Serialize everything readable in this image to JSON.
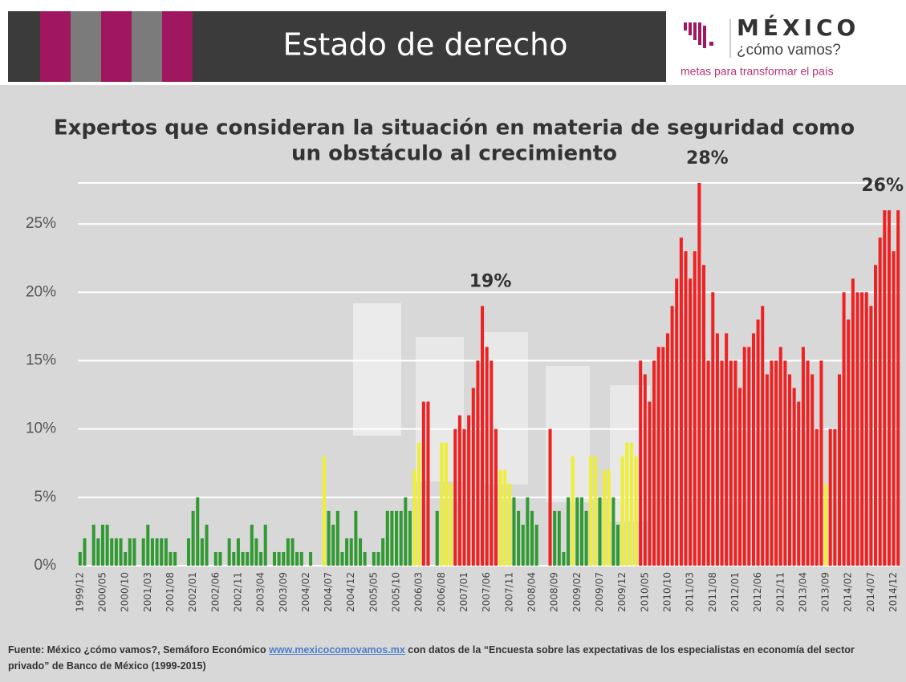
{
  "header": {
    "title": "Estado de derecho",
    "logo_title": "MÉXICO",
    "logo_subtitle": "¿cómo vamos?",
    "logo_tagline": "metas para transformar el país"
  },
  "chart_data": {
    "type": "bar",
    "title_lines": [
      "Expertos que consideran la situación en materia de seguridad  como",
      "un obstáculo al crecimiento"
    ],
    "categories": [
      "1999/12",
      null,
      null,
      null,
      null,
      "2000/05",
      null,
      null,
      null,
      null,
      "2000/10",
      null,
      null,
      null,
      null,
      "2001/03",
      null,
      null,
      null,
      null,
      "2001/08",
      null,
      null,
      null,
      null,
      "2002/01",
      null,
      null,
      null,
      null,
      "2002/06",
      null,
      null,
      null,
      null,
      "2002/11",
      null,
      null,
      null,
      null,
      "2003/04",
      null,
      null,
      null,
      null,
      "2003/09",
      null,
      null,
      null,
      null,
      "2004/02",
      null,
      null,
      null,
      null,
      "2004/07",
      null,
      null,
      null,
      null,
      "2004/12",
      null,
      null,
      null,
      null,
      "2005/05",
      null,
      null,
      null,
      null,
      "2005/10",
      null,
      null,
      null,
      null,
      "2006/03",
      null,
      null,
      null,
      null,
      "2006/08",
      null,
      null,
      null,
      null,
      "2007/01",
      null,
      null,
      null,
      null,
      "2007/06",
      null,
      null,
      null,
      null,
      "2007/11",
      null,
      null,
      null,
      null,
      "2008/04",
      null,
      null,
      null,
      null,
      "2008/09",
      null,
      null,
      null,
      null,
      "2009/02",
      null,
      null,
      null,
      null,
      "2009/07",
      null,
      null,
      null,
      null,
      "2009/12",
      null,
      null,
      null,
      null,
      "2010/05",
      null,
      null,
      null,
      null,
      "2010/10",
      null,
      null,
      null,
      null,
      "2011/03",
      null,
      null,
      null,
      null,
      "2011/08",
      null,
      null,
      null,
      null,
      "2012/01",
      null,
      null,
      null,
      null,
      "2012/06",
      null,
      null,
      null,
      null,
      "2012/11",
      null,
      null,
      null,
      null,
      "2013/04",
      null,
      null,
      null,
      null,
      "2013/09",
      null,
      null,
      null,
      null,
      "2014/02",
      null,
      null,
      null,
      null,
      "2014/07",
      null,
      null,
      null,
      null,
      "2014/12",
      null
    ],
    "values": [
      1,
      2,
      0,
      3,
      2,
      3,
      3,
      2,
      2,
      2,
      1,
      2,
      2,
      0,
      2,
      3,
      2,
      2,
      2,
      2,
      1,
      1,
      0,
      0,
      2,
      4,
      5,
      2,
      3,
      0,
      1,
      1,
      0,
      2,
      1,
      2,
      1,
      1,
      3,
      2,
      1,
      3,
      0,
      1,
      1,
      1,
      2,
      2,
      1,
      1,
      0,
      1,
      0,
      0,
      8,
      4,
      3,
      4,
      1,
      2,
      2,
      4,
      2,
      1,
      0,
      1,
      1,
      2,
      4,
      4,
      4,
      4,
      5,
      4,
      7,
      9,
      12,
      12,
      0,
      4,
      9,
      9,
      6,
      10,
      11,
      10,
      11,
      13,
      15,
      19,
      16,
      15,
      10,
      7,
      7,
      6,
      5,
      4,
      3,
      5,
      4,
      3,
      0,
      0,
      10,
      4,
      4,
      1,
      5,
      8,
      5,
      5,
      4,
      8,
      8,
      5,
      7,
      7,
      5,
      3,
      8,
      9,
      9,
      8,
      15,
      14,
      12,
      15,
      16,
      16,
      17,
      19,
      21,
      24,
      23,
      21,
      23,
      28,
      22,
      15,
      20,
      17,
      15,
      17,
      15,
      15,
      13,
      16,
      16,
      17,
      18,
      19,
      14,
      15,
      15,
      16,
      15,
      14,
      13,
      12,
      16,
      15,
      14,
      10,
      15,
      6,
      10,
      10,
      14,
      20,
      18,
      21,
      20,
      20,
      20,
      19,
      22,
      24,
      26,
      26,
      23,
      26
    ],
    "colors": [
      "#393",
      "#393",
      "#393",
      "#393",
      "#393",
      "#393",
      "#393",
      "#393",
      "#393",
      "#393",
      "#393",
      "#393",
      "#393",
      "#393",
      "#393",
      "#393",
      "#393",
      "#393",
      "#393",
      "#393",
      "#393",
      "#393",
      "#393",
      "#393",
      "#393",
      "#393",
      "#393",
      "#393",
      "#393",
      "#393",
      "#393",
      "#393",
      "#393",
      "#393",
      "#393",
      "#393",
      "#393",
      "#393",
      "#393",
      "#393",
      "#393",
      "#393",
      "#393",
      "#393",
      "#393",
      "#393",
      "#393",
      "#393",
      "#393",
      "#393",
      "#393",
      "#393",
      "#393",
      "#393",
      "#ee3",
      "#393",
      "#393",
      "#393",
      "#393",
      "#393",
      "#393",
      "#393",
      "#393",
      "#393",
      "#393",
      "#393",
      "#393",
      "#393",
      "#393",
      "#393",
      "#393",
      "#393",
      "#393",
      "#393",
      "#ee3",
      "#ee3",
      "#e22",
      "#e22",
      "#393",
      "#393",
      "#ee3",
      "#ee3",
      "#ee3",
      "#e22",
      "#e22",
      "#e22",
      "#e22",
      "#e22",
      "#e22",
      "#e22",
      "#e22",
      "#e22",
      "#e22",
      "#ee3",
      "#ee3",
      "#ee3",
      "#393",
      "#393",
      "#393",
      "#393",
      "#393",
      "#393",
      "#393",
      "#393",
      "#e22",
      "#393",
      "#393",
      "#393",
      "#393",
      "#ee3",
      "#393",
      "#393",
      "#393",
      "#ee3",
      "#ee3",
      "#393",
      "#ee3",
      "#ee3",
      "#393",
      "#393",
      "#ee3",
      "#ee3",
      "#ee3",
      "#ee3",
      "#e22",
      "#e22",
      "#e22",
      "#e22",
      "#e22",
      "#e22",
      "#e22",
      "#e22",
      "#e22",
      "#e22",
      "#e22",
      "#e22",
      "#e22",
      "#e22",
      "#e22",
      "#e22",
      "#e22",
      "#e22",
      "#e22",
      "#e22",
      "#e22",
      "#e22",
      "#e22",
      "#e22",
      "#e22",
      "#e22",
      "#e22",
      "#e22",
      "#e22",
      "#e22",
      "#e22",
      "#e22",
      "#e22",
      "#e22",
      "#e22",
      "#e22",
      "#e22",
      "#e22",
      "#e22",
      "#e22",
      "#e22",
      "#ee3",
      "#e22",
      "#e22",
      "#e22",
      "#e22",
      "#e22",
      "#e22",
      "#e22",
      "#e22",
      "#e22",
      "#e22",
      "#e22",
      "#e22",
      "#e22",
      "#e22",
      "#e22",
      "#e22"
    ],
    "value_labels": [
      null,
      null,
      null,
      null,
      null,
      null,
      null,
      null,
      null,
      null,
      null,
      null,
      null,
      null,
      null,
      null,
      null,
      null,
      null,
      null,
      null,
      null,
      null,
      null,
      null,
      null,
      null,
      null,
      null,
      null,
      null,
      null,
      null,
      null,
      null,
      null,
      null,
      null,
      null,
      null,
      null,
      null,
      null,
      null,
      null,
      null,
      null,
      null,
      null,
      null,
      null,
      null,
      null,
      null,
      null,
      null,
      null,
      null,
      null,
      null,
      null,
      null,
      null,
      null,
      null,
      null,
      null,
      null,
      null,
      null,
      null,
      null,
      null,
      null,
      null,
      null,
      null,
      null,
      null,
      null,
      null,
      null,
      null,
      null,
      null,
      null,
      null,
      null,
      null,
      "19%",
      null,
      null,
      null,
      null,
      null,
      null,
      null,
      null,
      null,
      null,
      null,
      null,
      null,
      null,
      null,
      null,
      null,
      null,
      null,
      null,
      null,
      null,
      null,
      null,
      null,
      null,
      null,
      null,
      null,
      null,
      null,
      null,
      null,
      null,
      null,
      null,
      null,
      null,
      null,
      null,
      null,
      null,
      null,
      null,
      null,
      null,
      null,
      "28%",
      null,
      null,
      null,
      null,
      null,
      null,
      null,
      null,
      null,
      null,
      null,
      null,
      null,
      null,
      null,
      null,
      null,
      null,
      null,
      null,
      null,
      null,
      null,
      null,
      null,
      null,
      null,
      null,
      null,
      null,
      null,
      null,
      null,
      null,
      null,
      null,
      null,
      null,
      null,
      null,
      null,
      null,
      null,
      "26%"
    ],
    "ylim": [
      0,
      28
    ],
    "yticks": [
      {
        "value": 0,
        "label": "0%"
      },
      {
        "value": 5,
        "label": "5%"
      },
      {
        "value": 10,
        "label": "10%"
      },
      {
        "value": 15,
        "label": "15%"
      },
      {
        "value": 20,
        "label": "20%"
      },
      {
        "value": 25,
        "label": "25%"
      }
    ],
    "grid": true
  },
  "source": {
    "before": "Fuente: México ¿cómo vamos?, Semáforo Económico ",
    "link": "www.mexicocomovamos.mx",
    "after": " con datos de la “Encuesta sobre las expectativas de los especialistas en economía del sector privado” de Banco de México (1999-2015)"
  }
}
